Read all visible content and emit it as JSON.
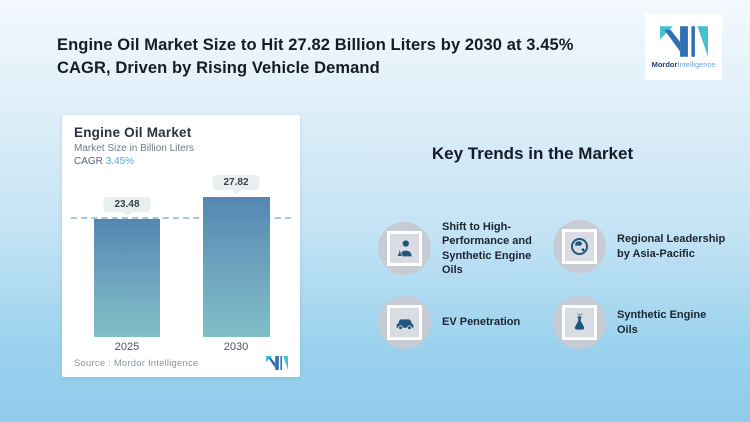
{
  "header": {
    "title_lines": [
      "Engine Oil Market Size to Hit 27.82 Billion Liters by 2030 at 3.45%",
      "CAGR, Driven by Rising Vehicle Demand"
    ]
  },
  "brand": {
    "name_primary": "Mordor",
    "name_secondary": "Intelligence",
    "logo_blue": "#2F6FB5",
    "logo_teal": "#45C1CF"
  },
  "chart_card": {
    "title": "Engine Oil Market",
    "subtitle": "Market Size in Billion Liters",
    "cagr_label": "CAGR",
    "cagr_value": "3.45%",
    "source_label": "Source :  Mordor Intelligence"
  },
  "chart_data": {
    "type": "bar",
    "title": "Engine Oil Market",
    "subtitle": "Market Size in Billion Liters",
    "cagr": "3.45%",
    "categories": [
      "2025",
      "2030"
    ],
    "values": [
      23.48,
      27.82
    ],
    "unit": "Billion Liters",
    "ylim": [
      0,
      44
    ],
    "grid": false,
    "legend": "none",
    "annotations": [
      "dashed horizontal reference line at 2025 value (23.48)",
      "value labels shown in pills above each bar"
    ],
    "bar_gradient_top": "#5586B2",
    "bar_gradient_bottom": "#81BEC7",
    "accent_color": "#58A9CE"
  },
  "key_trends": {
    "heading": "Key Trends in the Market",
    "items": [
      {
        "icon": "scientist-person-icon",
        "label": "Shift to High-Performance and Synthetic Engine Oils"
      },
      {
        "icon": "globe-asia-icon",
        "label": "Regional Leadership by Asia-Pacific"
      },
      {
        "icon": "car-icon",
        "label": "EV Penetration"
      },
      {
        "icon": "oil-flask-icon",
        "label": "Synthetic Engine Oils"
      }
    ]
  }
}
